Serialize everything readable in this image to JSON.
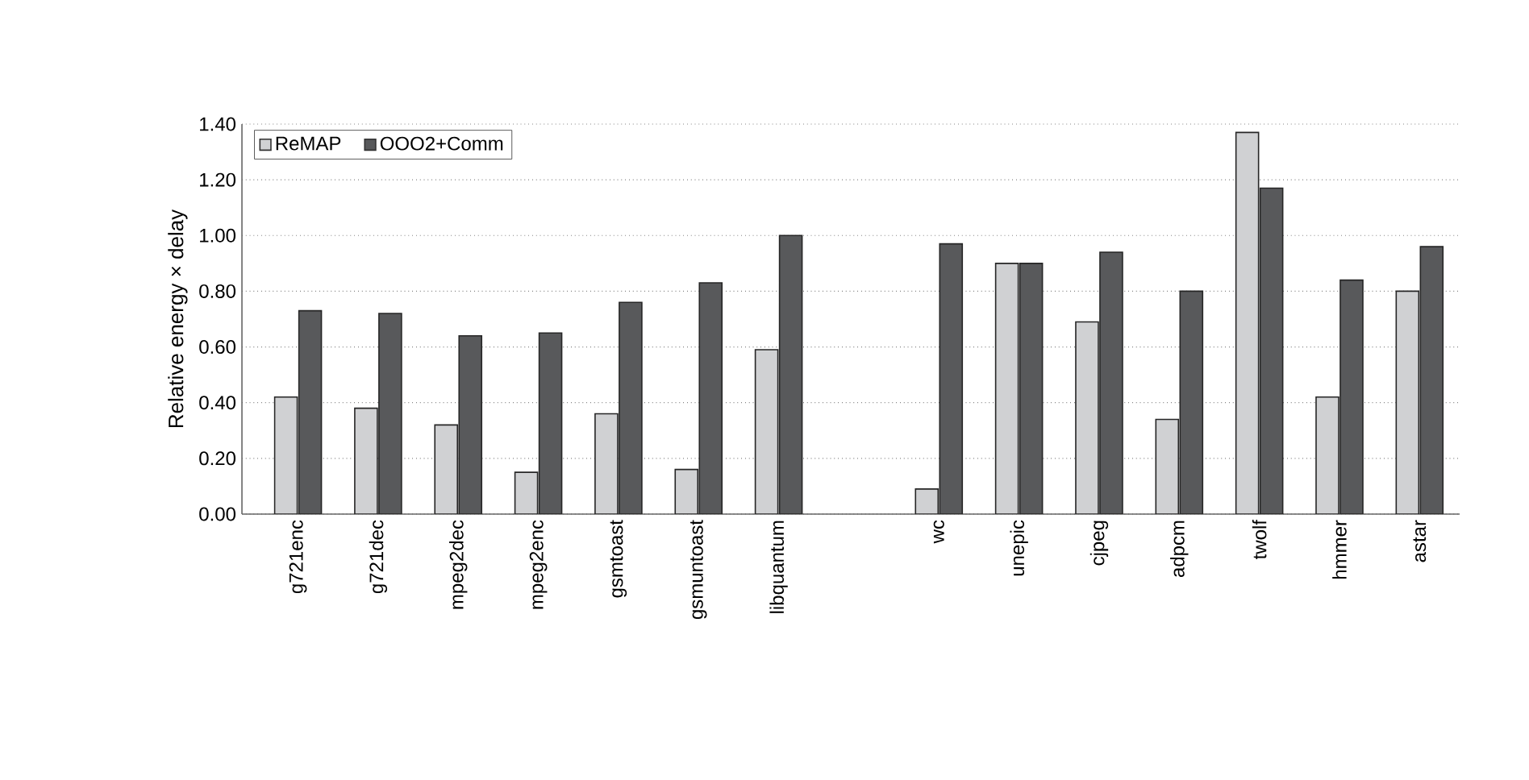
{
  "chart_data": {
    "type": "bar",
    "ylabel": "Relative energy × delay",
    "categories": [
      "g721enc",
      "g721dec",
      "mpeg2dec",
      "mpeg2enc",
      "gsmtoast",
      "gsmuntoast",
      "libquantum",
      null,
      "wc",
      "unepic",
      "cjpeg",
      "adpcm",
      "twolf",
      "hmmer",
      "astar"
    ],
    "series": [
      {
        "name": "ReMAP",
        "color": "#d0d1d3",
        "values": [
          0.42,
          0.38,
          0.32,
          0.15,
          0.36,
          0.16,
          0.59,
          null,
          0.09,
          0.9,
          0.69,
          0.34,
          1.37,
          0.42,
          0.8
        ]
      },
      {
        "name": "OOO2+Comm",
        "color": "#58595b",
        "values": [
          0.73,
          0.72,
          0.64,
          0.65,
          0.76,
          0.83,
          1.0,
          null,
          0.97,
          0.9,
          0.94,
          0.8,
          1.17,
          0.84,
          0.96
        ]
      }
    ],
    "ylim": [
      0,
      1.4
    ],
    "yticks": [
      {
        "value": 0,
        "label": "0.00"
      },
      {
        "value": 0.2,
        "label": "0.20"
      },
      {
        "value": 0.4,
        "label": "0.40"
      },
      {
        "value": 0.6,
        "label": "0.60"
      },
      {
        "value": 0.8,
        "label": "0.80"
      },
      {
        "value": 1.0,
        "label": "1.00"
      },
      {
        "value": 1.2,
        "label": "1.20"
      },
      {
        "value": 1.4,
        "label": "1.40"
      }
    ],
    "grid": "y",
    "legend": "top left"
  }
}
